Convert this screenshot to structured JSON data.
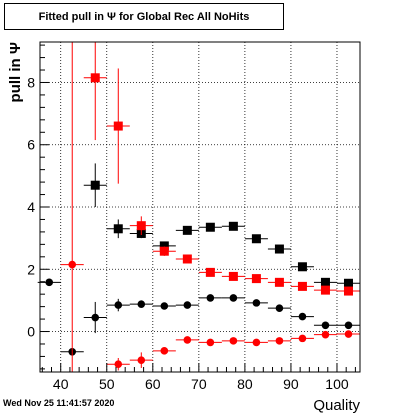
{
  "chart_data": {
    "type": "scatter",
    "title": "Fitted pull in  Ψ  for Global Rec All NoHits",
    "xlabel": "Quality",
    "ylabel": "pull in  Ψ",
    "xlim": [
      35.5,
      105
    ],
    "ylim": [
      -1.3,
      9.3
    ],
    "xticks": [
      40,
      50,
      60,
      70,
      80,
      90,
      100
    ],
    "yticks": [
      0,
      2,
      4,
      6,
      8
    ],
    "grid": true,
    "series": [
      {
        "marker": "square",
        "color": "#000000",
        "points": [
          {
            "x": 47.5,
            "y": 4.7,
            "yerr": 0.7
          },
          {
            "x": 52.5,
            "y": 3.3,
            "yerr": 0.3
          },
          {
            "x": 57.5,
            "y": 3.15,
            "yerr": 0.15
          },
          {
            "x": 62.5,
            "y": 2.75,
            "yerr": 0.12
          },
          {
            "x": 67.5,
            "y": 3.25,
            "yerr": 0.08
          },
          {
            "x": 72.5,
            "y": 3.35,
            "yerr": 0.06
          },
          {
            "x": 77.5,
            "y": 3.38,
            "yerr": 0.06
          },
          {
            "x": 82.5,
            "y": 2.98,
            "yerr": 0.06
          },
          {
            "x": 87.5,
            "y": 2.65,
            "yerr": 0.06
          },
          {
            "x": 92.5,
            "y": 2.08,
            "yerr": 0.05
          },
          {
            "x": 97.5,
            "y": 1.58,
            "yerr": 0.05
          },
          {
            "x": 102.5,
            "y": 1.55,
            "yerr": 0.05
          }
        ]
      },
      {
        "marker": "square",
        "color": "#ff0000",
        "points": [
          {
            "x": 47.5,
            "y": 8.15,
            "yerr": 2.0
          },
          {
            "x": 52.5,
            "y": 6.6,
            "yerr": 1.85
          },
          {
            "x": 57.5,
            "y": 3.4,
            "yerr": 0.3
          },
          {
            "x": 62.5,
            "y": 2.58,
            "yerr": 0.15
          },
          {
            "x": 67.5,
            "y": 2.33,
            "yerr": 0.08
          },
          {
            "x": 72.5,
            "y": 1.9,
            "yerr": 0.06
          },
          {
            "x": 77.5,
            "y": 1.77,
            "yerr": 0.06
          },
          {
            "x": 82.5,
            "y": 1.7,
            "yerr": 0.05
          },
          {
            "x": 87.5,
            "y": 1.58,
            "yerr": 0.05
          },
          {
            "x": 92.5,
            "y": 1.45,
            "yerr": 0.05
          },
          {
            "x": 97.5,
            "y": 1.33,
            "yerr": 0.05
          },
          {
            "x": 102.5,
            "y": 1.3,
            "yerr": 0.05
          }
        ]
      },
      {
        "marker": "circle",
        "color": "#000000",
        "points": [
          {
            "x": 37.5,
            "y": 1.58,
            "yerr": 0.05
          },
          {
            "x": 42.5,
            "y": -0.65,
            "yerr": 0.05
          },
          {
            "x": 47.5,
            "y": 0.45,
            "yerr": 0.5
          },
          {
            "x": 52.5,
            "y": 0.85,
            "yerr": 0.2
          },
          {
            "x": 57.5,
            "y": 0.88,
            "yerr": 0.12
          },
          {
            "x": 62.5,
            "y": 0.82,
            "yerr": 0.08
          },
          {
            "x": 67.5,
            "y": 0.85,
            "yerr": 0.06
          },
          {
            "x": 72.5,
            "y": 1.08,
            "yerr": 0.05
          },
          {
            "x": 77.5,
            "y": 1.08,
            "yerr": 0.05
          },
          {
            "x": 82.5,
            "y": 0.92,
            "yerr": 0.05
          },
          {
            "x": 87.5,
            "y": 0.75,
            "yerr": 0.05
          },
          {
            "x": 92.5,
            "y": 0.48,
            "yerr": 0.05
          },
          {
            "x": 97.5,
            "y": 0.2,
            "yerr": 0.05
          },
          {
            "x": 102.5,
            "y": 0.2,
            "yerr": 0.05
          }
        ]
      },
      {
        "marker": "circle",
        "color": "#ff0000",
        "points": [
          {
            "x": 42.5,
            "y": 2.15,
            "yerr": 7.4
          },
          {
            "x": 52.5,
            "y": -1.05,
            "yerr": 0.2
          },
          {
            "x": 57.5,
            "y": -0.92,
            "yerr": 0.25
          },
          {
            "x": 62.5,
            "y": -0.62,
            "yerr": 0.1
          },
          {
            "x": 67.5,
            "y": -0.27,
            "yerr": 0.07
          },
          {
            "x": 72.5,
            "y": -0.35,
            "yerr": 0.06
          },
          {
            "x": 77.5,
            "y": -0.3,
            "yerr": 0.05
          },
          {
            "x": 82.5,
            "y": -0.35,
            "yerr": 0.05
          },
          {
            "x": 87.5,
            "y": -0.3,
            "yerr": 0.05
          },
          {
            "x": 92.5,
            "y": -0.22,
            "yerr": 0.05
          },
          {
            "x": 97.5,
            "y": -0.1,
            "yerr": 0.05
          },
          {
            "x": 102.5,
            "y": -0.08,
            "yerr": 0.05
          }
        ]
      }
    ]
  },
  "footer": {
    "timestamp": "Wed Nov 25 11:41:57 2020"
  }
}
